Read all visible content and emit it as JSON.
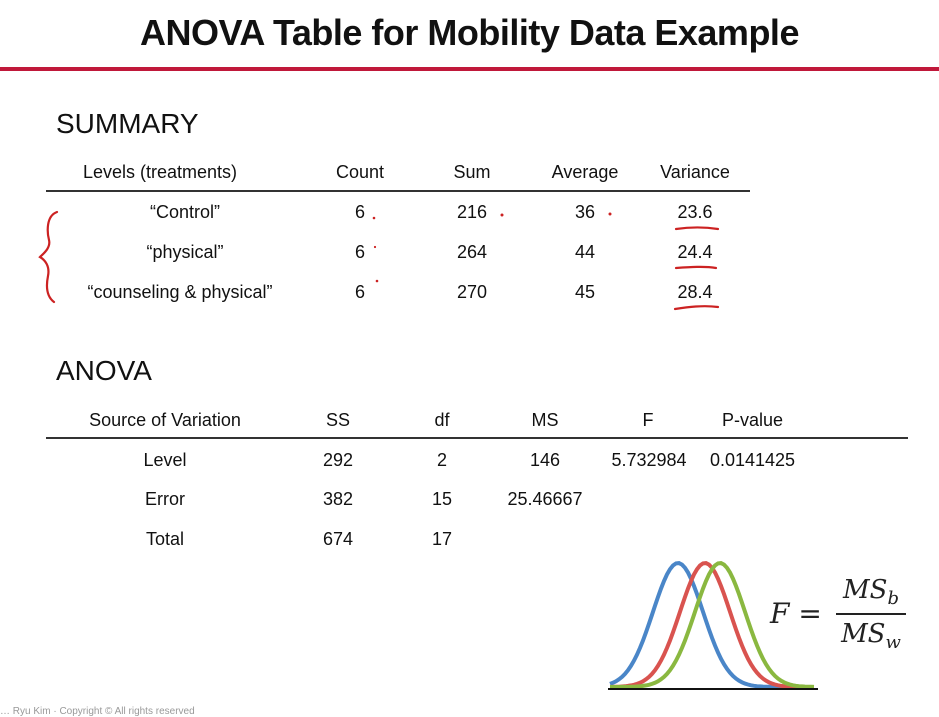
{
  "title": "ANOVA Table for Mobility Data Example",
  "summary": {
    "heading": "SUMMARY",
    "columns": [
      "Levels (treatments)",
      "Count",
      "Sum",
      "Average",
      "Variance"
    ],
    "rows": [
      [
        "“Control”",
        "6",
        "216",
        "36",
        "23.6"
      ],
      [
        "“physical”",
        "6",
        "264",
        "44",
        "24.4"
      ],
      [
        "“counseling & physical”",
        "6",
        "270",
        "45",
        "28.4"
      ]
    ]
  },
  "anova": {
    "heading": "ANOVA",
    "columns": [
      "Source of Variation",
      "SS",
      "df",
      "MS",
      "F",
      "P-value"
    ],
    "rows": [
      [
        "Level",
        "292",
        "2",
        "146",
        "5.732984",
        "0.0141425"
      ],
      [
        "Error",
        "382",
        "15",
        "25.46667",
        "",
        ""
      ],
      [
        "Total",
        "674",
        "17",
        "",
        "",
        ""
      ]
    ]
  },
  "formula": {
    "lhs": "F =",
    "numerator": "MS",
    "numerator_sub": "b",
    "denominator": "MS",
    "denominator_sub": "w"
  },
  "footer": "… Ryu Kim · Copyright © All rights reserved",
  "colors": {
    "accent_rule": "#c0183a",
    "ink": "#cc2222",
    "curve_blue": "#4a86c8",
    "curve_red": "#d9534f",
    "curve_green": "#8ab840"
  }
}
